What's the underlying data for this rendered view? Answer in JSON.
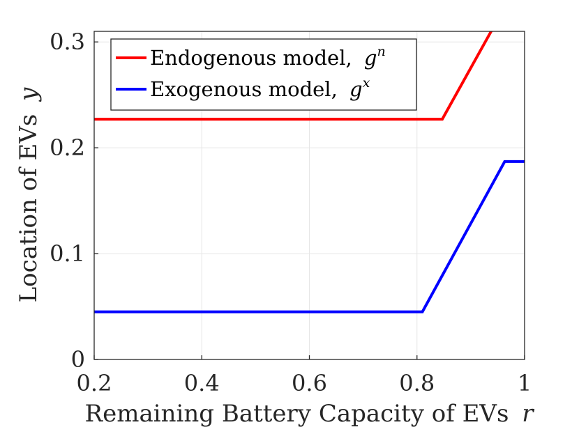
{
  "chart_data": {
    "type": "line",
    "xlabel": "Remaining Battery Capacity of EVs",
    "xlabel_var": "r",
    "ylabel": "Location of EVs",
    "ylabel_var": "y",
    "xlim": [
      0.2,
      1
    ],
    "ylim": [
      0,
      0.31
    ],
    "xticks": [
      0.2,
      0.4,
      0.6,
      0.8,
      1
    ],
    "xtick_labels": [
      "0.2",
      "0.4",
      "0.6",
      "0.8",
      "1"
    ],
    "yticks": [
      0,
      0.1,
      0.2,
      0.3
    ],
    "ytick_labels": [
      "0",
      "0.1",
      "0.2",
      "0.3"
    ],
    "grid": true,
    "legend_position": "top-left",
    "series": [
      {
        "name": "Endogenous model,",
        "symbol": "g",
        "superscript": "n",
        "color": "#ff0000",
        "x": [
          0.2,
          0.847,
          0.94,
          1.0
        ],
        "y": [
          0.227,
          0.227,
          0.312,
          0.312
        ]
      },
      {
        "name": "Exogenous model,",
        "symbol": "g",
        "superscript": "x",
        "color": "#0000ff",
        "x": [
          0.2,
          0.81,
          0.963,
          1.0
        ],
        "y": [
          0.045,
          0.045,
          0.187,
          0.187
        ]
      }
    ]
  }
}
